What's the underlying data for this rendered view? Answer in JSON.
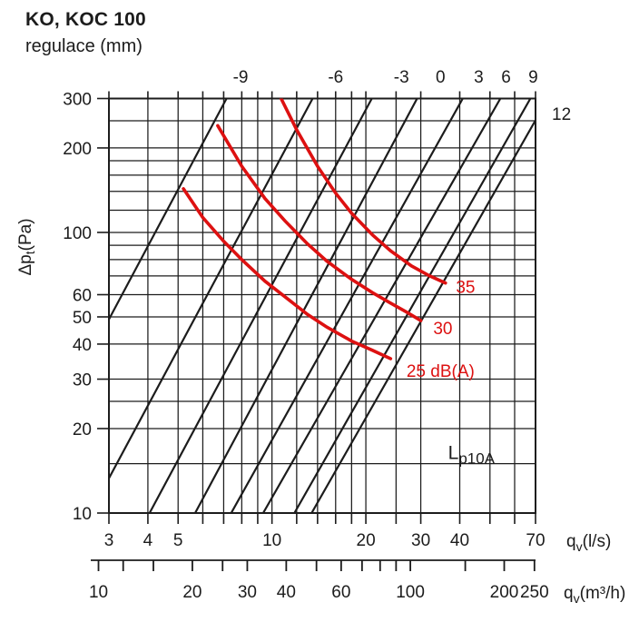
{
  "title": "KO, KOC 100",
  "subtitle": "regulace (mm)",
  "colors": {
    "ink": "#1c1c1c",
    "grid": "#1c1c1c",
    "noise_red": "#dd1111"
  },
  "chart_data": {
    "type": "line",
    "title": "KO, KOC 100",
    "regulace_axis_label": "regulace (mm)",
    "x_axis": {
      "label_main": "q",
      "label_sub": "v",
      "label_unit": "(l/s)",
      "scale": "log",
      "range": [
        3,
        70
      ],
      "gridlines": [
        3,
        4,
        5,
        6,
        7,
        8,
        9,
        10,
        12,
        14,
        16,
        18,
        20,
        25,
        30,
        40,
        50,
        60,
        70
      ],
      "labeled_ticks": [
        3,
        4,
        5,
        10,
        20,
        30,
        40,
        70
      ]
    },
    "x_axis_secondary": {
      "label_main": "q",
      "label_sub": "v",
      "label_unit": "(m³/h)",
      "scale": "log",
      "unit_factor_from_ls": 3.6,
      "ticks": [
        10,
        12,
        15,
        20,
        25,
        30,
        40,
        50,
        60,
        70,
        80,
        90,
        100,
        150,
        200,
        250
      ],
      "labeled_ticks": [
        10,
        20,
        30,
        40,
        60,
        100,
        200,
        250
      ]
    },
    "y_axis": {
      "label_main": "Δp",
      "label_sub": "t",
      "label_unit": "(Pa)",
      "scale": "log",
      "range": [
        10,
        300
      ],
      "gridlines": [
        10,
        15,
        20,
        25,
        30,
        40,
        50,
        60,
        70,
        80,
        90,
        100,
        120,
        140,
        160,
        180,
        200,
        250,
        300
      ],
      "labeled_ticks": [
        300,
        200,
        100,
        60,
        50,
        40,
        30,
        20,
        10
      ]
    },
    "regulace_lines": [
      {
        "value": -9,
        "points": [
          [
            3,
            49
          ],
          [
            7.15,
            300
          ]
        ],
        "label": {
          "side": "top",
          "q": 7.93
        }
      },
      {
        "value": -6,
        "points": [
          [
            3,
            13.3
          ],
          [
            13.5,
            300
          ]
        ],
        "label": {
          "side": "top",
          "q": 16.0
        }
      },
      {
        "value": -3,
        "points": [
          [
            4.05,
            10
          ],
          [
            20.9,
            300
          ]
        ],
        "label": {
          "side": "top",
          "q": 26.0
        }
      },
      {
        "value": 0,
        "points": [
          [
            5.67,
            10
          ],
          [
            29.2,
            300
          ]
        ],
        "label": {
          "side": "top",
          "q": 34.7
        }
      },
      {
        "value": 3,
        "points": [
          [
            7.4,
            10
          ],
          [
            40.9,
            300
          ]
        ],
        "label": {
          "side": "top",
          "q": 46.0
        }
      },
      {
        "value": 6,
        "points": [
          [
            9.37,
            10
          ],
          [
            54.0,
            300
          ]
        ],
        "label": {
          "side": "top",
          "q": 56.3
        }
      },
      {
        "value": 9,
        "points": [
          [
            11.8,
            10
          ],
          [
            67.4,
            300
          ]
        ],
        "label": {
          "side": "top",
          "q": 68.8
        }
      },
      {
        "value": 12,
        "points": [
          [
            13.4,
            10
          ],
          [
            70,
            251
          ]
        ],
        "label": {
          "side": "right",
          "pa": 265
        }
      }
    ],
    "noise_curves": [
      {
        "label": "25 dB(A)",
        "label_at": [
          27.0,
          30.6
        ],
        "points": [
          [
            5.2,
            143
          ],
          [
            6,
            113
          ],
          [
            7,
            93
          ],
          [
            8,
            80
          ],
          [
            9.5,
            67
          ],
          [
            11,
            59
          ],
          [
            13,
            51
          ],
          [
            15,
            46
          ],
          [
            18,
            41
          ],
          [
            21,
            38
          ],
          [
            24,
            35.5
          ]
        ]
      },
      {
        "label": "30",
        "label_at": [
          32.9,
          43.4
        ],
        "points": [
          [
            6.7,
            240
          ],
          [
            8,
            172
          ],
          [
            9.5,
            132
          ],
          [
            11,
            110
          ],
          [
            13,
            91
          ],
          [
            15,
            79
          ],
          [
            18,
            68
          ],
          [
            21,
            61
          ],
          [
            24,
            56
          ],
          [
            27,
            52
          ],
          [
            30,
            48.5
          ]
        ]
      },
      {
        "label": "35",
        "label_at": [
          38.9,
          61
        ],
        "points": [
          [
            10.7,
            300
          ],
          [
            12,
            232
          ],
          [
            14,
            172
          ],
          [
            16,
            138
          ],
          [
            18,
            117
          ],
          [
            21,
            98
          ],
          [
            24,
            86
          ],
          [
            28,
            76
          ],
          [
            32,
            70
          ],
          [
            36,
            66
          ]
        ]
      }
    ],
    "corner_label": {
      "text_main": "L",
      "text_sub": "p10A",
      "at": [
        36.7,
        15.6
      ]
    }
  }
}
